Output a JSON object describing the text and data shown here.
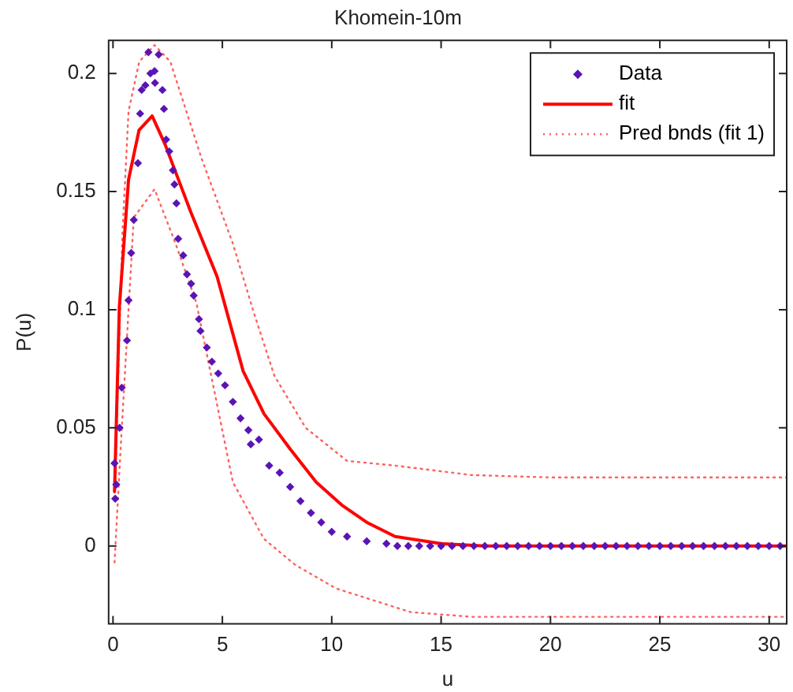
{
  "chart_data": {
    "type": "scatter",
    "title": "Khomein-10m",
    "xlabel": "u",
    "ylabel": "P(u)",
    "xlim": [
      -0.2,
      30.8
    ],
    "ylim": [
      -0.033,
      0.214
    ],
    "xticks": [
      0,
      5,
      10,
      15,
      20,
      25,
      30
    ],
    "yticks": [
      0,
      0.05,
      0.1,
      0.15,
      0.2
    ],
    "grid": false,
    "legend": "top right",
    "series": [
      {
        "name": "Data",
        "type": "scatter",
        "marker": "diamond",
        "color": "#5a14b4",
        "x": [
          0.07,
          0.1,
          0.15,
          0.3,
          0.4,
          0.64,
          0.71,
          0.83,
          0.95,
          1.14,
          1.24,
          1.31,
          1.48,
          1.62,
          1.71,
          1.9,
          1.92,
          2.09,
          2.26,
          2.33,
          2.43,
          2.57,
          2.74,
          2.81,
          2.9,
          2.98,
          3.21,
          3.38,
          3.57,
          3.69,
          3.93,
          4.0,
          4.29,
          4.52,
          4.81,
          5.12,
          5.48,
          5.83,
          6.19,
          6.3,
          6.67,
          7.14,
          7.62,
          8.1,
          8.57,
          9.05,
          9.52,
          10,
          10.7,
          11.6,
          12.5,
          13,
          13.5,
          14,
          14.5,
          15,
          15.5,
          16,
          16.5,
          17,
          17.5,
          18,
          18.5,
          19,
          19.5,
          20,
          20.5,
          21,
          21.5,
          22,
          22.5,
          23,
          23.5,
          24,
          24.5,
          25,
          25.5,
          26,
          26.5,
          27,
          27.5,
          28,
          28.5,
          29,
          29.5,
          30,
          30.5
        ],
        "values": [
          0.035,
          0.02,
          0.026,
          0.05,
          0.067,
          0.087,
          0.104,
          0.124,
          0.138,
          0.162,
          0.183,
          0.193,
          0.195,
          0.209,
          0.2,
          0.201,
          0.196,
          0.208,
          0.193,
          0.185,
          0.172,
          0.167,
          0.159,
          0.153,
          0.145,
          0.13,
          0.123,
          0.115,
          0.111,
          0.106,
          0.096,
          0.091,
          0.084,
          0.078,
          0.073,
          0.068,
          0.061,
          0.054,
          0.049,
          0.043,
          0.045,
          0.034,
          0.031,
          0.025,
          0.019,
          0.014,
          0.01,
          0.006,
          0.004,
          0.002,
          0.001,
          0,
          0,
          0,
          0,
          0,
          0,
          0,
          0,
          0,
          0,
          0,
          0,
          0,
          0,
          0,
          0,
          0,
          0,
          0,
          0,
          0,
          0,
          0,
          0,
          0,
          0,
          0,
          0,
          0,
          0,
          0,
          0,
          0,
          0,
          0,
          0
        ]
      },
      {
        "name": "fit",
        "type": "line",
        "marker": "none",
        "line_style": "solid",
        "color": "#ff0000",
        "x": [
          0.07,
          0.29,
          0.71,
          1.19,
          1.79,
          2.38,
          3.57,
          4.76,
          5.95,
          6.9,
          8.1,
          9.29,
          10.5,
          11.6,
          12.9,
          15,
          17,
          30.8
        ],
        "values": [
          0.023,
          0.101,
          0.155,
          0.176,
          0.182,
          0.17,
          0.141,
          0.114,
          0.074,
          0.056,
          0.041,
          0.027,
          0.017,
          0.01,
          0.004,
          0.001,
          0,
          0
        ]
      },
      {
        "name": "Pred bnds (fit 1)",
        "type": "line",
        "marker": "none",
        "line_style": "dotted",
        "color": "#ff6060",
        "x": [
          0.07,
          0.43,
          0.71,
          1.2,
          1.9,
          2.62,
          4.05,
          5.48,
          6.43,
          7.38,
          8.81,
          10.7,
          12.9,
          16.4,
          20,
          30.8
        ],
        "values": [
          0.02,
          0.132,
          0.184,
          0.205,
          0.212,
          0.205,
          0.164,
          0.128,
          0.099,
          0.072,
          0.05,
          0.036,
          0.034,
          0.03,
          0.029,
          0.029
        ]
      },
      {
        "type": "line",
        "marker": "none",
        "line_style": "dotted",
        "color": "#ff6060",
        "x": [
          0.07,
          0.36,
          0.95,
          1.9,
          2.86,
          3.81,
          5.48,
          6.9,
          8.33,
          10.2,
          13.6,
          16.4,
          30.8
        ],
        "values": [
          -0.007,
          0.043,
          0.139,
          0.151,
          0.128,
          0.103,
          0.027,
          0.003,
          -0.008,
          -0.018,
          -0.028,
          -0.03,
          -0.03
        ]
      }
    ]
  }
}
